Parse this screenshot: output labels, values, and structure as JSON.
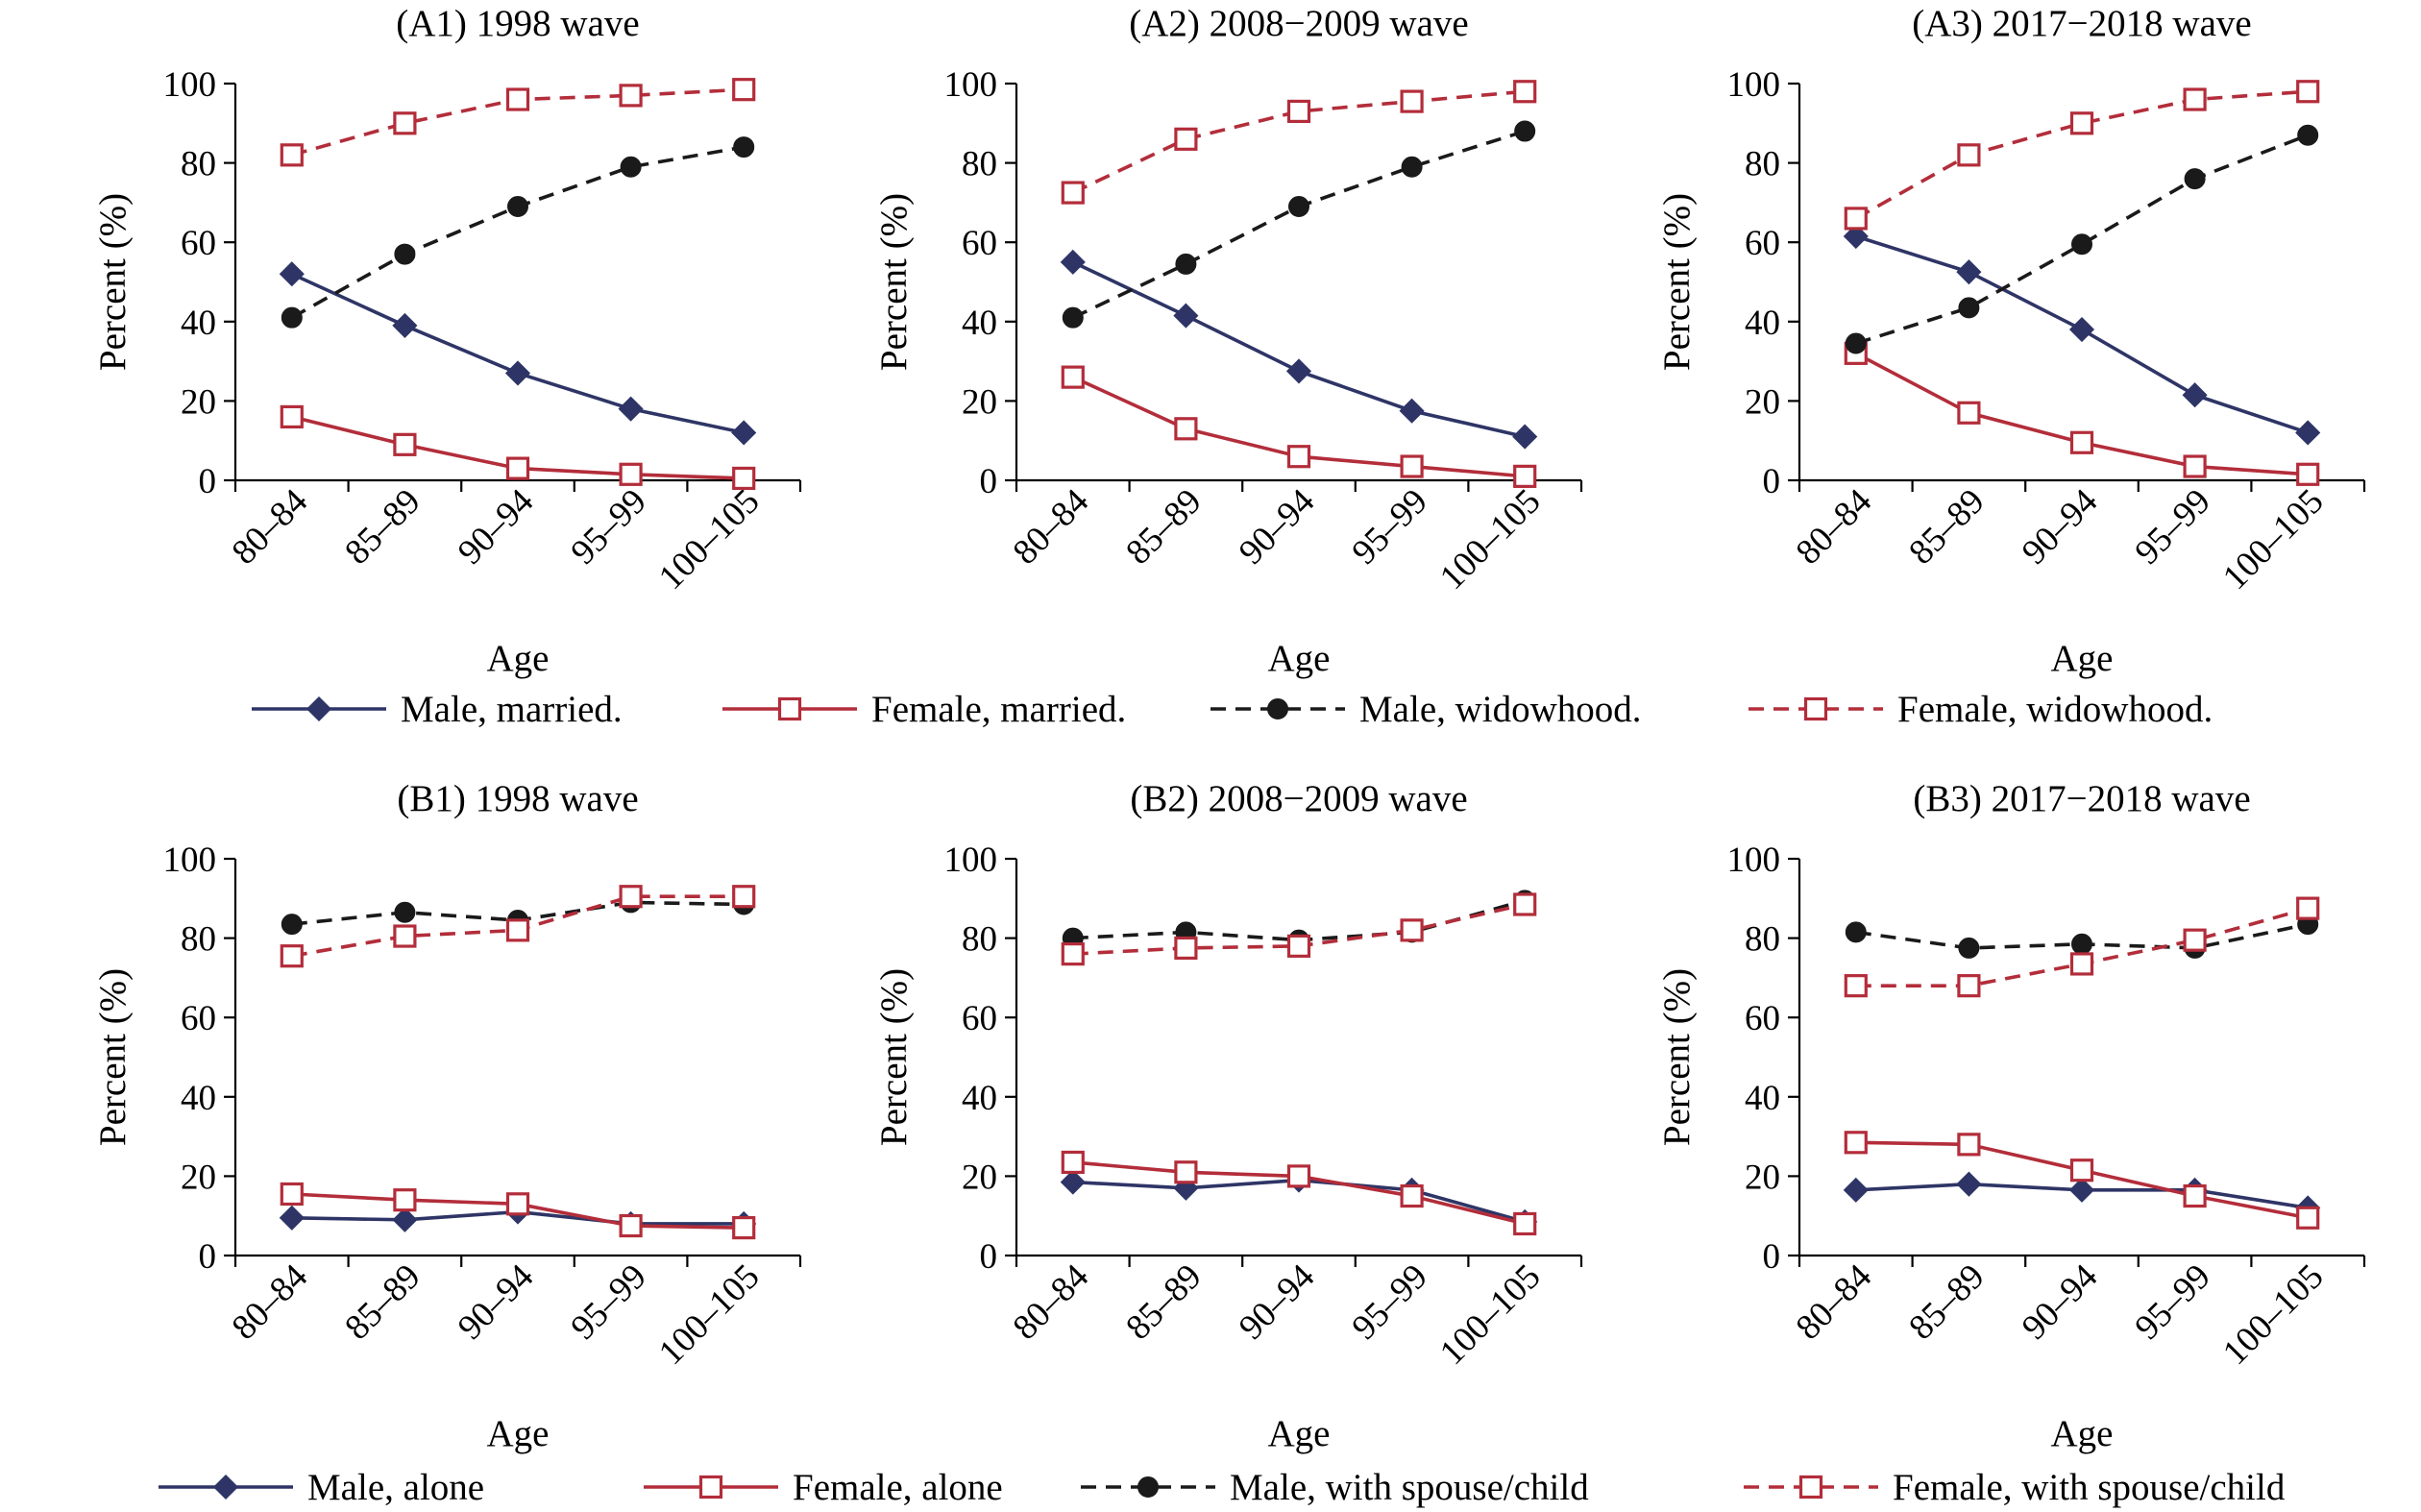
{
  "chart_data": [
    {
      "panel": "A1",
      "title": "(A1) 1998 wave",
      "type": "line",
      "xlabel": "Age",
      "ylabel": "Percent (%)",
      "ylim": [
        0,
        100
      ],
      "yticks": [
        "0",
        "20",
        "40",
        "60",
        "80",
        "100"
      ],
      "categories": [
        "80–84",
        "85–89",
        "90–94",
        "95–99",
        "100–105"
      ],
      "series": [
        {
          "key": "male_married",
          "values": [
            52,
            39,
            27,
            18,
            12
          ]
        },
        {
          "key": "female_married",
          "values": [
            16,
            9,
            3,
            1.5,
            0.5
          ]
        },
        {
          "key": "male_widowhood",
          "values": [
            41,
            57,
            69,
            79,
            84
          ]
        },
        {
          "key": "female_widowhood",
          "values": [
            82,
            90,
            96,
            97,
            98.5
          ]
        }
      ]
    },
    {
      "panel": "A2",
      "title": "(A2) 2008−2009 wave",
      "type": "line",
      "xlabel": "Age",
      "ylabel": "Percent (%)",
      "ylim": [
        0,
        100
      ],
      "yticks": [
        "0",
        "20",
        "40",
        "60",
        "80",
        "100"
      ],
      "categories": [
        "80–84",
        "85–89",
        "90–94",
        "95–99",
        "100–105"
      ],
      "series": [
        {
          "key": "male_married",
          "values": [
            55,
            41.5,
            27.5,
            17.5,
            11
          ]
        },
        {
          "key": "female_married",
          "values": [
            26,
            13,
            6,
            3.5,
            1
          ]
        },
        {
          "key": "male_widowhood",
          "values": [
            41,
            54.5,
            69,
            79,
            88
          ]
        },
        {
          "key": "female_widowhood",
          "values": [
            72.5,
            86,
            93,
            95.5,
            98
          ]
        }
      ]
    },
    {
      "panel": "A3",
      "title": "(A3) 2017−2018 wave",
      "type": "line",
      "xlabel": "Age",
      "ylabel": "Percent (%)",
      "ylim": [
        0,
        100
      ],
      "yticks": [
        "0",
        "20",
        "40",
        "60",
        "80",
        "100"
      ],
      "categories": [
        "80–84",
        "85–89",
        "90–94",
        "95–99",
        "100–105"
      ],
      "series": [
        {
          "key": "male_married",
          "values": [
            61.5,
            52.5,
            38,
            21.5,
            12
          ]
        },
        {
          "key": "female_married",
          "values": [
            32,
            17,
            9.5,
            3.5,
            1.5
          ]
        },
        {
          "key": "male_widowhood",
          "values": [
            34.5,
            43.5,
            59.5,
            76,
            87
          ]
        },
        {
          "key": "female_widowhood",
          "values": [
            66,
            82,
            90,
            96,
            98
          ]
        }
      ]
    },
    {
      "panel": "B1",
      "title": "(B1) 1998 wave",
      "type": "line",
      "xlabel": "Age",
      "ylabel": "Percent (%)",
      "ylim": [
        0,
        100
      ],
      "yticks": [
        "0",
        "20",
        "40",
        "60",
        "80",
        "100"
      ],
      "categories": [
        "80–84",
        "85–89",
        "90–94",
        "95–99",
        "100–105"
      ],
      "series": [
        {
          "key": "male_alone",
          "values": [
            9.5,
            9,
            11,
            8,
            8
          ]
        },
        {
          "key": "female_alone",
          "values": [
            15.5,
            14,
            13,
            7.5,
            7
          ]
        },
        {
          "key": "male_with",
          "values": [
            83.5,
            86.5,
            84.5,
            89,
            88.5
          ]
        },
        {
          "key": "female_with",
          "values": [
            75.5,
            80.5,
            82,
            90.5,
            90.5
          ]
        }
      ]
    },
    {
      "panel": "B2",
      "title": "(B2) 2008−2009 wave",
      "type": "line",
      "xlabel": "Age",
      "ylabel": "Percent (%)",
      "ylim": [
        0,
        100
      ],
      "yticks": [
        "0",
        "20",
        "40",
        "60",
        "80",
        "100"
      ],
      "categories": [
        "80–84",
        "85–89",
        "90–94",
        "95–99",
        "100–105"
      ],
      "series": [
        {
          "key": "male_alone",
          "values": [
            18.5,
            17,
            19,
            16.5,
            8.5
          ]
        },
        {
          "key": "female_alone",
          "values": [
            23.5,
            21,
            20,
            15,
            8
          ]
        },
        {
          "key": "male_with",
          "values": [
            80,
            81.5,
            79.5,
            81.5,
            89.5
          ]
        },
        {
          "key": "female_with",
          "values": [
            76,
            77.5,
            78,
            82,
            88.5
          ]
        }
      ]
    },
    {
      "panel": "B3",
      "title": "(B3) 2017−2018 wave",
      "type": "line",
      "xlabel": "Age",
      "ylabel": "Percent (%)",
      "ylim": [
        0,
        100
      ],
      "yticks": [
        "0",
        "20",
        "40",
        "60",
        "80",
        "100"
      ],
      "categories": [
        "80–84",
        "85–89",
        "90–94",
        "95–99",
        "100–105"
      ],
      "series": [
        {
          "key": "male_alone",
          "values": [
            16.5,
            18,
            16.5,
            16.5,
            12
          ]
        },
        {
          "key": "female_alone",
          "values": [
            28.5,
            28,
            21.5,
            15,
            9.5
          ]
        },
        {
          "key": "male_with",
          "values": [
            81.5,
            77.5,
            78.5,
            77.5,
            83.5
          ]
        },
        {
          "key": "female_with",
          "values": [
            68,
            68,
            73.5,
            79.5,
            87.5
          ]
        }
      ]
    }
  ],
  "legends": {
    "top": [
      {
        "key": "male_married",
        "label": "Male, married."
      },
      {
        "key": "female_married",
        "label": "Female, married."
      },
      {
        "key": "male_widowhood",
        "label": "Male, widowhood."
      },
      {
        "key": "female_widowhood",
        "label": "Female, widowhood."
      }
    ],
    "bottom": [
      {
        "key": "male_alone",
        "label": "Male, alone"
      },
      {
        "key": "female_alone",
        "label": "Female, alone"
      },
      {
        "key": "male_with",
        "label": "Male, with spouse/child"
      },
      {
        "key": "female_with",
        "label": "Female, with spouse/child"
      }
    ]
  },
  "series_styles": {
    "male_married": {
      "color": "#2e3566",
      "dash": "solid",
      "marker": "diamond"
    },
    "female_married": {
      "color": "#b32d3a",
      "dash": "solid",
      "marker": "square-open"
    },
    "male_widowhood": {
      "color": "#1a1a1a",
      "dash": "dashed",
      "marker": "circle"
    },
    "female_widowhood": {
      "color": "#b32d3a",
      "dash": "dashed",
      "marker": "square-open"
    },
    "male_alone": {
      "color": "#2e3566",
      "dash": "solid",
      "marker": "diamond"
    },
    "female_alone": {
      "color": "#b32d3a",
      "dash": "solid",
      "marker": "square-open"
    },
    "male_with": {
      "color": "#1a1a1a",
      "dash": "dashed",
      "marker": "circle"
    },
    "female_with": {
      "color": "#b32d3a",
      "dash": "dashed",
      "marker": "square-open"
    }
  }
}
